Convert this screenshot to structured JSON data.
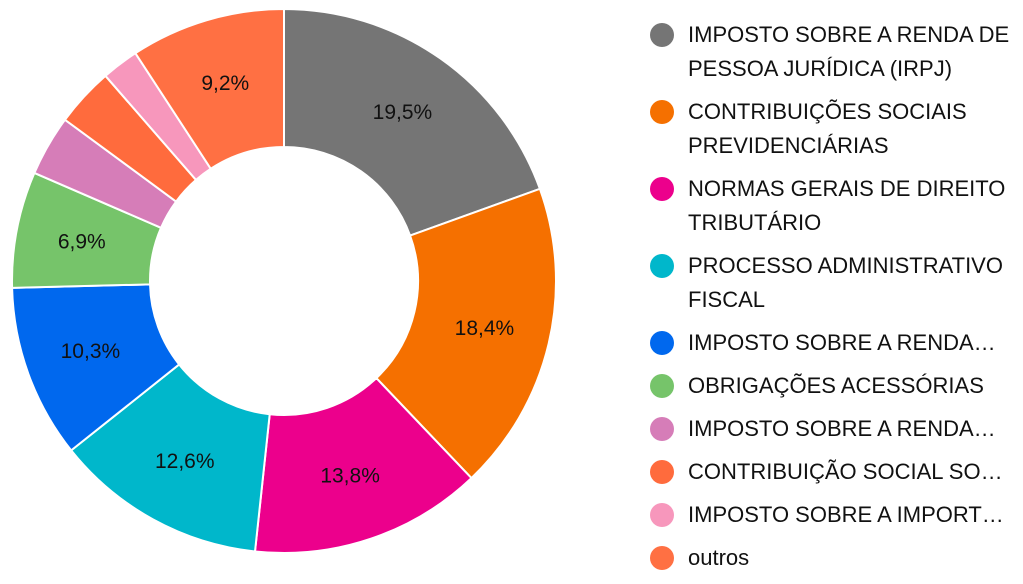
{
  "chart_data": {
    "type": "pie",
    "title": "",
    "donut": true,
    "legend_position": "right",
    "slices": [
      {
        "label": "IMPOSTO SOBRE A RENDA DE PESSOA JURÍDICA (IRPJ)",
        "value": 19.5,
        "display": "19,5%",
        "color": "#757575"
      },
      {
        "label": "CONTRIBUIÇÕES SOCIAIS PREVIDENCIÁRIAS",
        "value": 18.4,
        "display": "18,4%",
        "color": "#F57000"
      },
      {
        "label": "NORMAS GERAIS DE DIREITO TRIBUTÁRIO",
        "value": 13.8,
        "display": "13,8%",
        "color": "#EC008C"
      },
      {
        "label": "PROCESSO ADMINISTRATIVO FISCAL",
        "value": 12.6,
        "display": "12,6%",
        "color": "#00B7CB"
      },
      {
        "label": "IMPOSTO SOBRE A RENDA…",
        "value": 10.3,
        "display": "10,3%",
        "color": "#0068EE"
      },
      {
        "label": "OBRIGAÇÕES ACESSÓRIAS",
        "value": 6.9,
        "display": "6,9%",
        "color": "#76C46A"
      },
      {
        "label": "IMPOSTO SOBRE A RENDA…",
        "value": 3.6,
        "display": "",
        "color": "#D67DB8"
      },
      {
        "label": "CONTRIBUIÇÃO SOCIAL SO…",
        "value": 3.5,
        "display": "",
        "color": "#FF6B3D"
      },
      {
        "label": "IMPOSTO SOBRE A IMPORT…",
        "value": 2.2,
        "display": "",
        "color": "#F797BC"
      },
      {
        "label": "outros",
        "value": 9.2,
        "display": "9,2%",
        "color": "#FF7043"
      }
    ]
  }
}
